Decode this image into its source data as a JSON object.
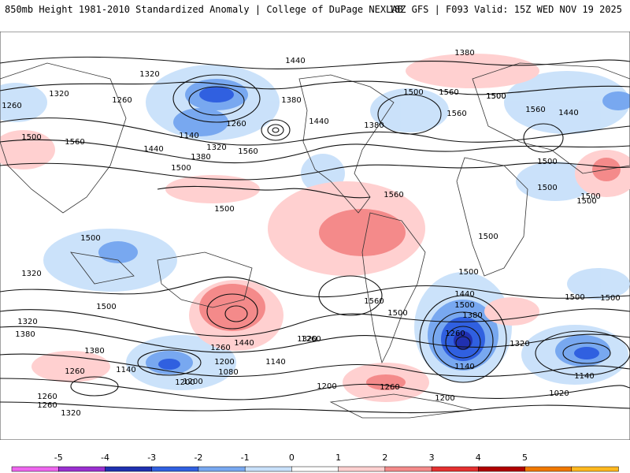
{
  "header": {
    "left_title": "850mb Height 1981-2010 Standardized Anomaly | College of DuPage NEXLAB",
    "right_title": "18Z GFS | F093 Valid: 15Z WED NOV 19 2025"
  },
  "colorbar": {
    "ticks": [
      "-5",
      "-4",
      "-3",
      "-2",
      "-1",
      "0",
      "1",
      "2",
      "3",
      "4",
      "5"
    ],
    "colors": [
      "#ee66ee",
      "#9a2fd0",
      "#2030b0",
      "#3060e0",
      "#78a8f0",
      "#c8e0fa",
      "#ffffff",
      "#ffd0d0",
      "#f48a8a",
      "#e43030",
      "#b00000",
      "#f07800",
      "#ffb820"
    ]
  },
  "contour_labels": [
    "1320",
    "1320",
    "1260",
    "1260",
    "1380",
    "1140",
    "1260",
    "1320",
    "1440",
    "1560",
    "1380",
    "1440",
    "1500",
    "1560",
    "1440",
    "1380",
    "1500",
    "1560",
    "1500",
    "1560",
    "1500",
    "1500",
    "1500",
    "1560",
    "1500",
    "1500",
    "1500",
    "1320",
    "1440",
    "1560",
    "1380",
    "1260",
    "1200",
    "1080",
    "1140",
    "1200",
    "1320",
    "1260",
    "1140",
    "1440",
    "1320",
    "1380",
    "1500",
    "1380",
    "1260",
    "1140",
    "1320",
    "1260",
    "1260",
    "1320",
    "1200",
    "1260",
    "1200",
    "1200",
    "1020",
    "1140",
    "1260",
    "1500",
    "1500",
    "1500",
    "1380",
    "1440",
    "1500",
    "1500",
    "1500",
    "1500",
    "1560",
    "1500"
  ]
}
